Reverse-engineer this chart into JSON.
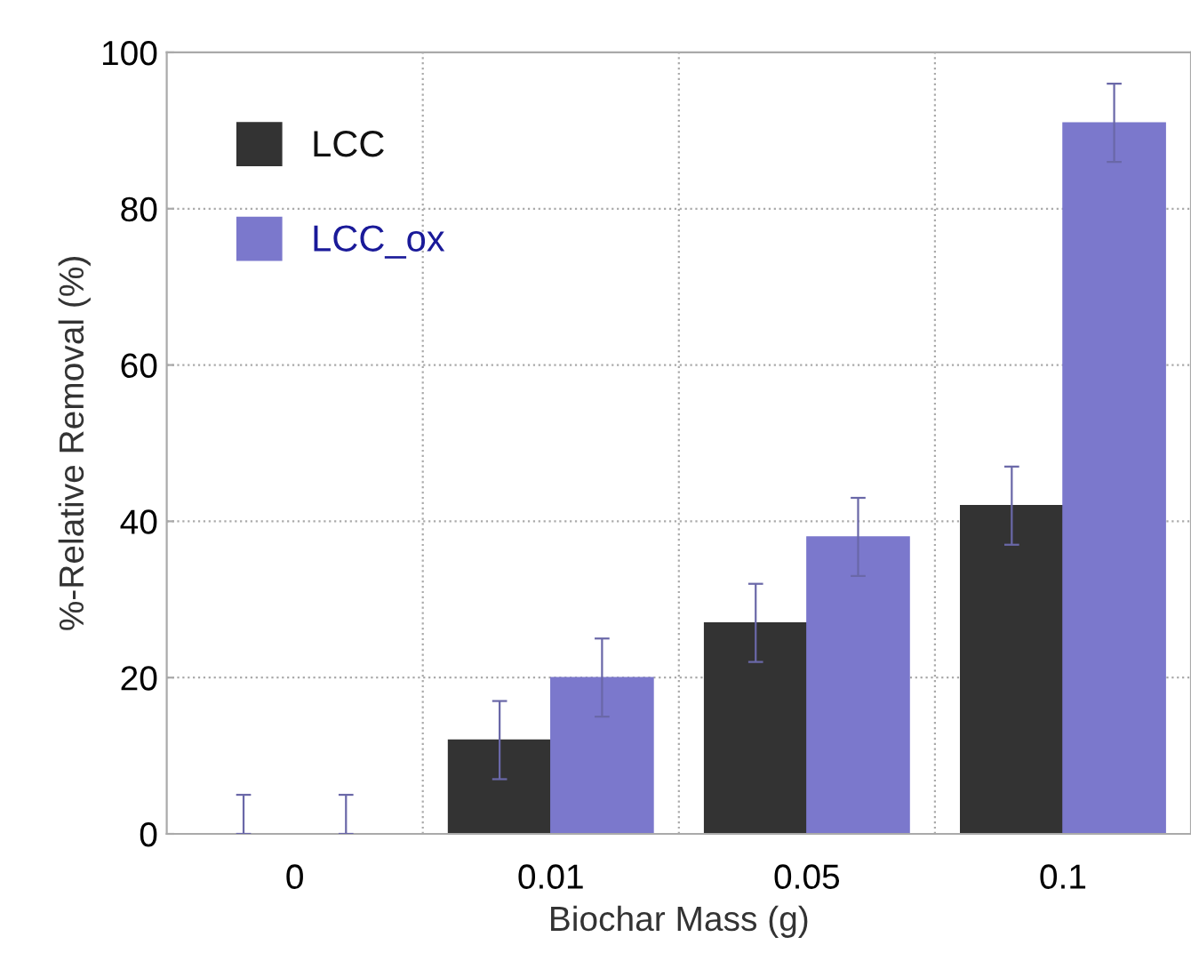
{
  "chart_data": {
    "type": "bar",
    "xlabel": "Biochar Mass (g)",
    "ylabel": "%-Relative Removal (%)",
    "categories": [
      "0",
      "0.01",
      "0.05",
      "0.1"
    ],
    "series": [
      {
        "name": "LCC",
        "color": "#333333",
        "values": [
          0,
          12,
          27,
          42
        ],
        "errors": [
          [
            0,
            5
          ],
          5,
          5,
          5
        ]
      },
      {
        "name": "LCC_ox",
        "color": "#7b78cc",
        "values": [
          0,
          20,
          38,
          91
        ],
        "errors": [
          [
            0,
            5
          ],
          5,
          5,
          5
        ]
      }
    ],
    "ylim": [
      0,
      100
    ],
    "yticks": [
      0,
      20,
      40,
      60,
      80,
      100
    ],
    "grid": true,
    "legend": "top left"
  }
}
